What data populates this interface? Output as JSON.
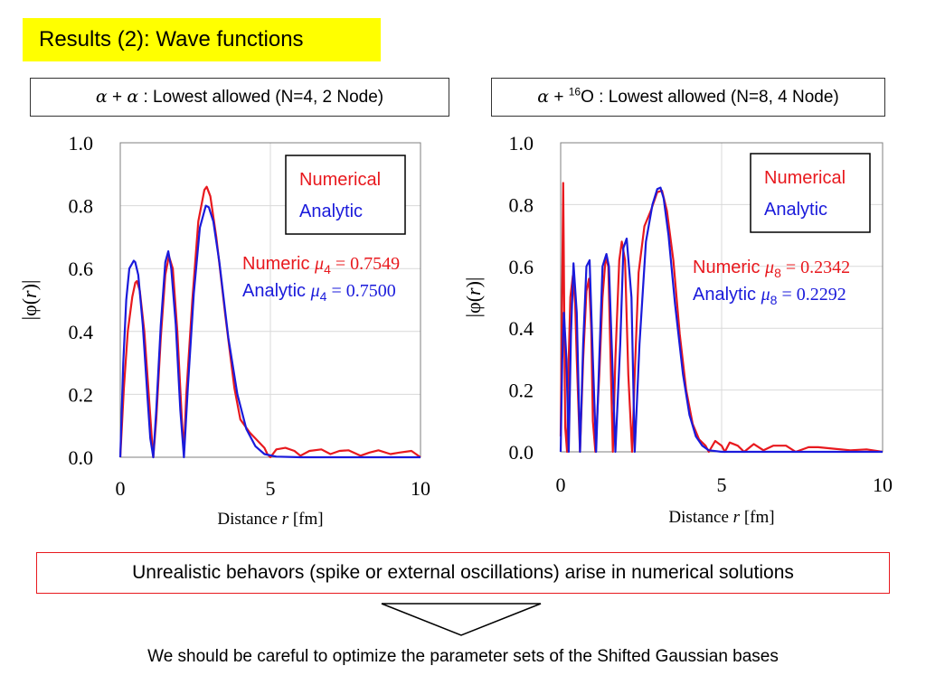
{
  "slide": {
    "title": "Results (2): Wave functions",
    "problem_statement": "Unrealistic behavors (spike or external oscillations) arise in numerical solutions",
    "conclusion": "We should be careful to optimize the parameter sets of the Shifted Gaussian bases"
  },
  "headers": {
    "left": {
      "alpha1": "α",
      "plus": " + ",
      "alpha2": "α",
      "rest": " : Lowest allowed (N=4, 2 Node)"
    },
    "right": {
      "alpha": "α",
      "plus": " + ",
      "mass": "16",
      "element": "O",
      "rest": " : Lowest allowed (N=8, 4 Node)"
    }
  },
  "colors": {
    "numerical": "#e8191e",
    "analytic": "#1a1adb",
    "title_bg": "#ffff00",
    "grid": "#d9d9d9"
  },
  "chart_data": [
    {
      "type": "line",
      "xlabel": "Distance r [fm]",
      "ylabel": "|φ(r)|",
      "xlim": [
        0,
        10
      ],
      "ylim": [
        0,
        1.0
      ],
      "xticks": [
        "0",
        "5",
        "10"
      ],
      "yticks": [
        "0.0",
        "0.2",
        "0.4",
        "0.6",
        "0.8",
        "1.0"
      ],
      "grid": true,
      "legend": [
        "Numerical",
        "Analytic"
      ],
      "legend_position": "top-right",
      "annotations": {
        "numeric": {
          "label": "Numeric ",
          "mu": "μ",
          "sub": "4",
          "value": " = 0.7549"
        },
        "analytic": {
          "label": "Analytic ",
          "mu": "μ",
          "sub": "4",
          "value": " = 0.7500"
        }
      },
      "series": [
        {
          "name": "Numerical",
          "x": [
            0,
            0.12,
            0.25,
            0.4,
            0.5,
            0.55,
            0.65,
            0.8,
            0.95,
            1.05,
            1.1,
            1.2,
            1.35,
            1.5,
            1.62,
            1.75,
            1.9,
            2.05,
            2.12,
            2.2,
            2.4,
            2.6,
            2.8,
            2.88,
            3.0,
            3.2,
            3.5,
            3.8,
            4.0,
            4.3,
            4.6,
            4.8,
            4.9,
            5.0,
            5.2,
            5.5,
            5.8,
            6.0,
            6.3,
            6.7,
            7.0,
            7.3,
            7.6,
            8.0,
            8.3,
            8.6,
            9.0,
            9.3,
            9.7,
            10.0
          ],
          "values": [
            0,
            0.22,
            0.4,
            0.51,
            0.555,
            0.56,
            0.53,
            0.4,
            0.2,
            0.06,
            0.0,
            0.12,
            0.38,
            0.58,
            0.64,
            0.6,
            0.4,
            0.12,
            0.02,
            0.2,
            0.5,
            0.75,
            0.85,
            0.86,
            0.83,
            0.7,
            0.45,
            0.22,
            0.12,
            0.08,
            0.05,
            0.03,
            0.01,
            0.0,
            0.025,
            0.03,
            0.02,
            0.005,
            0.02,
            0.025,
            0.01,
            0.02,
            0.022,
            0.005,
            0.015,
            0.022,
            0.01,
            0.015,
            0.02,
            0.0
          ]
        },
        {
          "name": "Analytic",
          "x": [
            0,
            0.1,
            0.2,
            0.3,
            0.45,
            0.5,
            0.6,
            0.75,
            0.9,
            1.0,
            1.1,
            1.2,
            1.35,
            1.5,
            1.6,
            1.7,
            1.85,
            2.0,
            2.12,
            2.25,
            2.45,
            2.65,
            2.85,
            2.95,
            3.1,
            3.3,
            3.6,
            3.9,
            4.2,
            4.5,
            4.8,
            5.2,
            6.0,
            10.0
          ],
          "values": [
            0,
            0.3,
            0.5,
            0.6,
            0.625,
            0.62,
            0.58,
            0.42,
            0.2,
            0.06,
            0.0,
            0.15,
            0.42,
            0.62,
            0.655,
            0.6,
            0.42,
            0.15,
            0.0,
            0.22,
            0.52,
            0.73,
            0.8,
            0.795,
            0.75,
            0.62,
            0.38,
            0.2,
            0.09,
            0.035,
            0.01,
            0.002,
            0,
            0
          ]
        }
      ]
    },
    {
      "type": "line",
      "xlabel": "Distance r [fm]",
      "ylabel": "|φ(r)|",
      "xlim": [
        0,
        10
      ],
      "ylim": [
        0,
        1.0
      ],
      "xticks": [
        "0",
        "5",
        "10"
      ],
      "yticks": [
        "0.0",
        "0.2",
        "0.4",
        "0.6",
        "0.8",
        "1.0"
      ],
      "grid": true,
      "legend": [
        "Numerical",
        "Analytic"
      ],
      "legend_position": "top-right",
      "annotations": {
        "numeric": {
          "label": "Numeric ",
          "mu": "μ",
          "sub": "8",
          "value": " = 0.2342"
        },
        "analytic": {
          "label": "Analytic ",
          "mu": "μ",
          "sub": "8",
          "value": " = 0.2292"
        }
      },
      "series": [
        {
          "name": "Numerical",
          "x": [
            0,
            0.08,
            0.14,
            0.2,
            0.25,
            0.3,
            0.38,
            0.45,
            0.5,
            0.6,
            0.7,
            0.8,
            0.88,
            0.95,
            1.0,
            1.08,
            1.2,
            1.3,
            1.4,
            1.48,
            1.55,
            1.62,
            1.7,
            1.82,
            1.9,
            2.0,
            2.1,
            2.22,
            2.3,
            2.42,
            2.6,
            2.8,
            3.0,
            3.15,
            3.3,
            3.5,
            3.7,
            3.9,
            4.1,
            4.3,
            4.5,
            4.6,
            4.8,
            5.0,
            5.1,
            5.25,
            5.5,
            5.7,
            6.0,
            6.3,
            6.6,
            7.0,
            7.3,
            7.7,
            8.0,
            8.5,
            9.0,
            9.5,
            10.0
          ],
          "values": [
            0.05,
            0.87,
            0.08,
            0.0,
            0.3,
            0.5,
            0.57,
            0.48,
            0.3,
            0.0,
            0.3,
            0.52,
            0.56,
            0.4,
            0.1,
            0.0,
            0.25,
            0.5,
            0.63,
            0.6,
            0.3,
            0.0,
            0.3,
            0.62,
            0.68,
            0.62,
            0.25,
            0.0,
            0.25,
            0.58,
            0.73,
            0.78,
            0.84,
            0.845,
            0.78,
            0.62,
            0.38,
            0.2,
            0.09,
            0.04,
            0.02,
            0.0,
            0.035,
            0.02,
            0.0,
            0.03,
            0.02,
            0.0,
            0.025,
            0.005,
            0.02,
            0.02,
            0.0,
            0.015,
            0.015,
            0.01,
            0.005,
            0.008,
            0.0
          ]
        },
        {
          "name": "Analytic",
          "x": [
            0,
            0.05,
            0.1,
            0.18,
            0.25,
            0.32,
            0.4,
            0.5,
            0.6,
            0.7,
            0.8,
            0.9,
            1.0,
            1.1,
            1.2,
            1.3,
            1.42,
            1.5,
            1.6,
            1.7,
            1.85,
            1.95,
            2.05,
            2.2,
            2.3,
            2.45,
            2.65,
            2.85,
            3.0,
            3.1,
            3.2,
            3.35,
            3.55,
            3.8,
            4.0,
            4.2,
            4.4,
            4.6,
            5.0,
            6.0,
            10.0
          ],
          "values": [
            0,
            0.3,
            0.45,
            0.3,
            0.0,
            0.38,
            0.61,
            0.45,
            0.0,
            0.35,
            0.6,
            0.62,
            0.3,
            0.0,
            0.3,
            0.6,
            0.64,
            0.6,
            0.3,
            0.0,
            0.35,
            0.66,
            0.69,
            0.5,
            0.0,
            0.35,
            0.68,
            0.8,
            0.85,
            0.855,
            0.82,
            0.7,
            0.48,
            0.25,
            0.12,
            0.05,
            0.02,
            0.005,
            0.0,
            0,
            0
          ]
        }
      ]
    }
  ]
}
